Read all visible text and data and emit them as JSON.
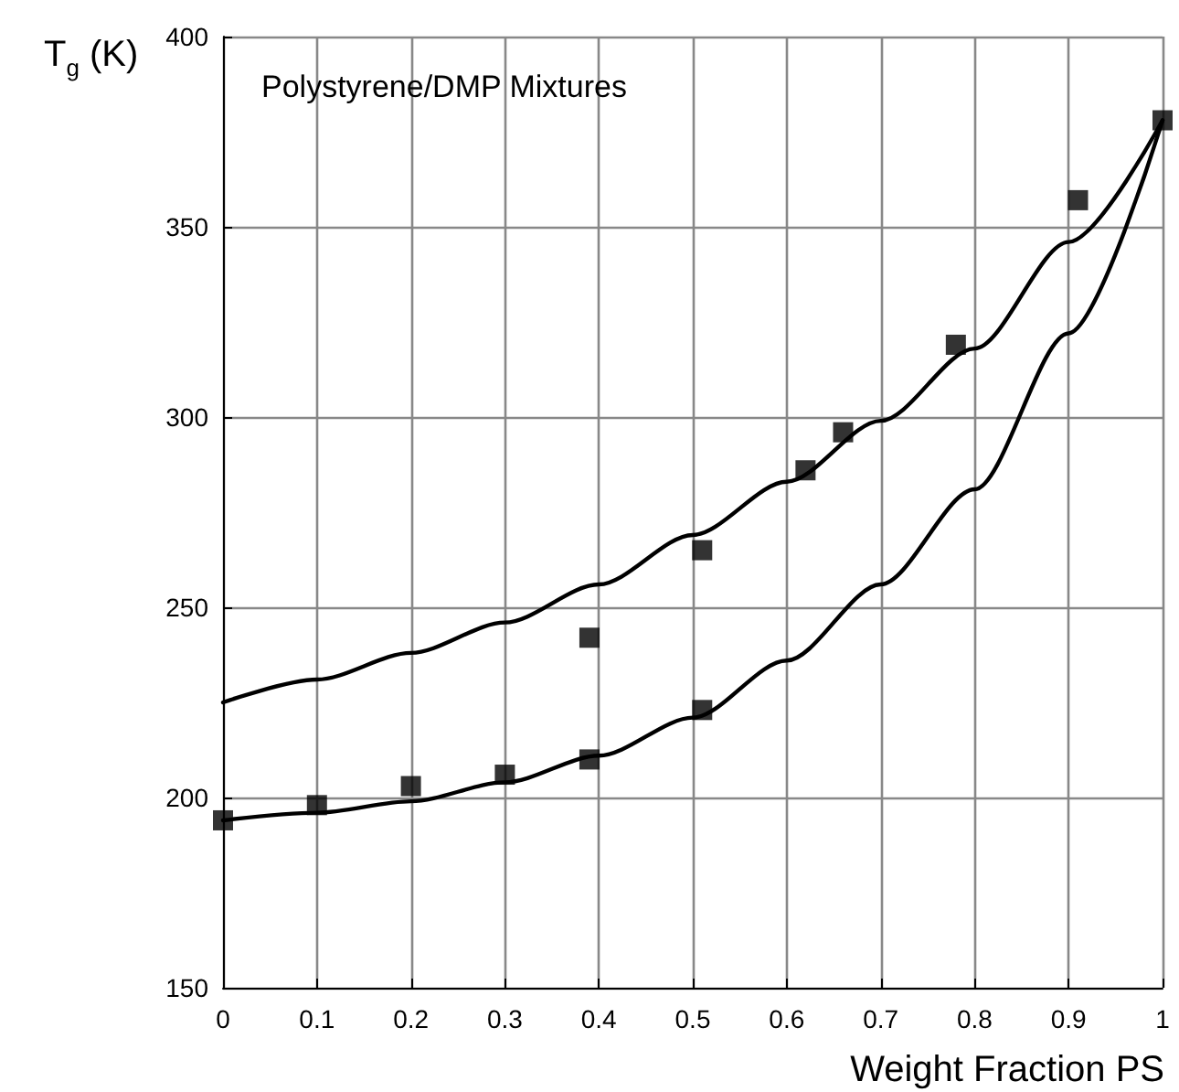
{
  "chart_data": {
    "type": "scatter",
    "title": "Polystyrene/DMP Mixtures",
    "xlabel": "Weight Fraction PS",
    "ylabel": "T$_{g}$ (K)",
    "xlim": [
      0,
      1
    ],
    "xticks": [
      0,
      0.1,
      0.2,
      0.3,
      0.4,
      0.5,
      0.6,
      0.7,
      0.8,
      0.9,
      1
    ],
    "ylim": [
      150,
      400
    ],
    "yticks": [
      150,
      200,
      250,
      300,
      350,
      400
    ],
    "grid": true,
    "series": [
      {
        "marker": "square",
        "color": "#000000",
        "x": [
          0,
          0.1,
          0.2,
          0.3,
          0.39,
          0.39,
          0.51,
          0.51,
          0.62,
          0.66,
          0.78,
          0.91,
          1
        ],
        "values": [
          194,
          198,
          203,
          206,
          210,
          242,
          223,
          265,
          286,
          296,
          319,
          357,
          378
        ]
      },
      {
        "type": "line",
        "marker": "none",
        "line_style": "solid",
        "color": "#000000",
        "x": [
          0,
          0.1,
          0.2,
          0.3,
          0.4,
          0.5,
          0.6,
          0.7,
          0.8,
          0.9,
          1
        ],
        "values": [
          225,
          231,
          238,
          246,
          256,
          269,
          283,
          299,
          318,
          346,
          378
        ]
      },
      {
        "type": "line",
        "marker": "none",
        "line_style": "solid",
        "color": "#000000",
        "x": [
          0,
          0.1,
          0.2,
          0.3,
          0.4,
          0.5,
          0.6,
          0.7,
          0.8,
          0.9,
          1
        ],
        "values": [
          194,
          196,
          199,
          204,
          211,
          221,
          236,
          256,
          281,
          322,
          378
        ]
      }
    ]
  }
}
